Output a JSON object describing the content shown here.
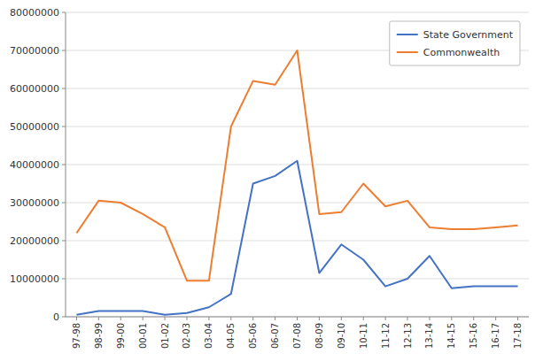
{
  "chart_data": {
    "type": "line",
    "categories": [
      "97-98",
      "98-99",
      "99-00",
      "00-01",
      "01-02",
      "02-03",
      "03-04",
      "04-05",
      "05-06",
      "06-07",
      "07-08",
      "08-09",
      "09-10",
      "10-11",
      "11-12",
      "12-13",
      "13-14",
      "14-15",
      "15-16",
      "16-17",
      "17-18"
    ],
    "series": [
      {
        "name": "State Government",
        "color": "#4472C4",
        "values": [
          500000,
          1500000,
          1500000,
          1500000,
          500000,
          1000000,
          2500000,
          6000000,
          35000000,
          37000000,
          41000000,
          11500000,
          19000000,
          15000000,
          8000000,
          10000000,
          16000000,
          7500000,
          8000000,
          8000000,
          8000000
        ]
      },
      {
        "name": "Commonwealth",
        "color": "#ED7D31",
        "values": [
          22000000,
          30500000,
          30000000,
          27000000,
          23500000,
          9500000,
          9500000,
          50000000,
          62000000,
          61000000,
          70000000,
          27000000,
          27500000,
          35000000,
          29000000,
          30500000,
          23500000,
          23000000,
          23000000,
          23500000,
          24000000
        ]
      }
    ],
    "ylim": [
      0,
      80000000
    ],
    "yticks": [
      0,
      10000000,
      20000000,
      30000000,
      40000000,
      50000000,
      60000000,
      70000000,
      80000000
    ],
    "grid": true,
    "legend": "upper right"
  }
}
